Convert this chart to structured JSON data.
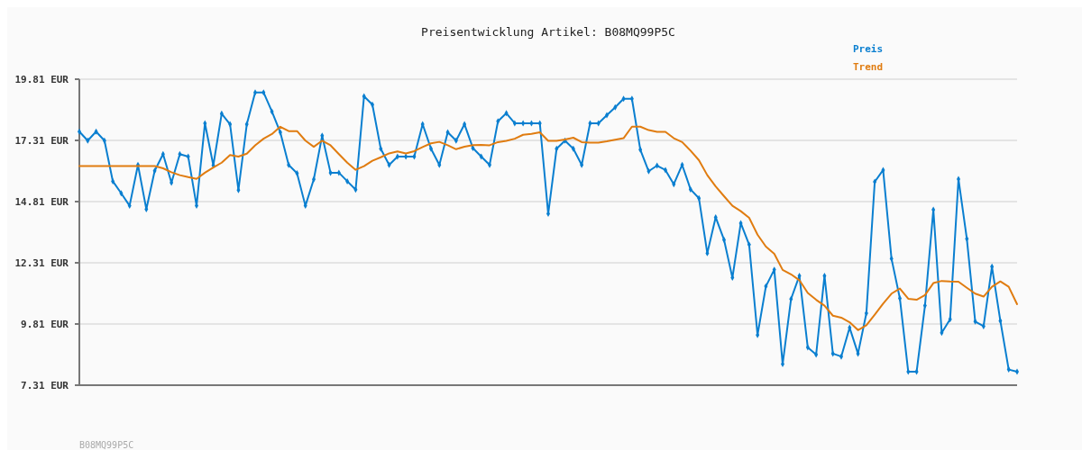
{
  "chart_data": {
    "type": "line",
    "title": "Preisentwicklung Artikel: B08MQ99P5C",
    "categories": [
      null,
      null,
      null,
      null,
      null,
      null,
      null,
      null,
      null,
      null,
      null,
      null,
      null,
      null,
      null,
      null,
      null,
      null,
      null,
      null,
      null,
      null,
      null,
      null,
      null,
      null,
      null,
      null,
      null,
      null,
      null,
      null,
      null,
      null,
      null,
      null,
      null,
      null,
      null,
      null,
      null,
      null,
      null,
      null,
      null,
      null,
      null,
      null,
      null,
      null,
      null,
      null,
      null,
      null,
      null,
      null,
      null,
      null,
      null,
      null,
      null,
      null,
      null,
      null,
      null,
      null,
      null,
      null,
      null,
      null,
      null,
      null,
      null,
      null,
      null,
      null,
      null,
      null,
      null,
      null,
      null,
      null,
      null,
      null,
      null,
      null,
      null,
      null,
      null,
      null,
      null,
      null,
      null,
      null,
      null,
      null,
      null,
      null,
      null,
      null,
      null,
      null,
      null,
      null,
      null,
      null,
      null,
      null,
      null,
      null,
      null,
      null,
      null
    ],
    "series": [
      {
        "name": "Preis",
        "color": "#0a7fd0",
        "marker": "diamond",
        "values": [
          17.67,
          17.3,
          17.67,
          17.3,
          15.64,
          15.15,
          14.64,
          16.31,
          14.5,
          16.07,
          16.75,
          15.58,
          16.75,
          16.65,
          14.64,
          18.01,
          16.29,
          18.4,
          17.97,
          15.28,
          17.97,
          19.27,
          19.27,
          18.49,
          17.64,
          16.31,
          15.97,
          14.64,
          15.72,
          17.5,
          15.99,
          15.99,
          15.64,
          15.3,
          19.11,
          18.77,
          16.97,
          16.31,
          16.65,
          16.65,
          16.65,
          17.97,
          16.97,
          16.31,
          17.64,
          17.3,
          17.97,
          17.0,
          16.65,
          16.31,
          18.09,
          18.42,
          18.01,
          18.01,
          18.01,
          18.01,
          14.31,
          16.97,
          17.3,
          16.97,
          16.31,
          18.01,
          18.01,
          18.34,
          18.66,
          19.01,
          19.01,
          16.93,
          16.05,
          16.28,
          16.1,
          15.52,
          16.31,
          15.31,
          14.95,
          12.7,
          14.17,
          13.25,
          11.7,
          13.93,
          13.05,
          9.36,
          11.35,
          12.03,
          8.17,
          10.83,
          11.78,
          8.85,
          8.56,
          11.78,
          8.6,
          8.48,
          9.66,
          8.6,
          10.25,
          15.62,
          16.1,
          12.48,
          10.86,
          7.86,
          7.86,
          10.56,
          14.48,
          9.45,
          10.0,
          15.73,
          13.29,
          9.91,
          9.72,
          12.15,
          9.94,
          7.95,
          7.86
        ]
      },
      {
        "name": "Trend",
        "color": "#e07c10",
        "marker": "none",
        "values": [
          16.26,
          16.26,
          16.26,
          16.26,
          16.26,
          16.26,
          16.26,
          16.26,
          16.26,
          16.26,
          16.17,
          16.01,
          15.89,
          15.81,
          15.74,
          15.99,
          16.2,
          16.4,
          16.71,
          16.65,
          16.77,
          17.11,
          17.38,
          17.57,
          17.87,
          17.69,
          17.69,
          17.3,
          17.05,
          17.3,
          17.11,
          16.75,
          16.4,
          16.11,
          16.26,
          16.48,
          16.62,
          16.78,
          16.86,
          16.78,
          16.87,
          17.04,
          17.19,
          17.25,
          17.11,
          16.95,
          17.05,
          17.12,
          17.13,
          17.11,
          17.24,
          17.29,
          17.38,
          17.54,
          17.58,
          17.64,
          17.29,
          17.29,
          17.35,
          17.42,
          17.24,
          17.22,
          17.22,
          17.27,
          17.34,
          17.4,
          17.87,
          17.87,
          17.73,
          17.66,
          17.66,
          17.4,
          17.24,
          16.89,
          16.5,
          15.89,
          15.43,
          15.03,
          14.64,
          14.42,
          14.15,
          13.46,
          12.97,
          12.68,
          12.02,
          11.84,
          11.6,
          11.08,
          10.8,
          10.56,
          10.15,
          10.07,
          9.88,
          9.56,
          9.76,
          10.19,
          10.64,
          11.05,
          11.26,
          10.84,
          10.8,
          10.99,
          11.48,
          11.57,
          11.55,
          11.54,
          11.29,
          11.05,
          10.93,
          11.33,
          11.55,
          11.33,
          10.62
        ]
      }
    ],
    "ylim": [
      7.31,
      19.81
    ],
    "yticks": [
      {
        "value": 7.31,
        "label": "7.31 EUR"
      },
      {
        "value": 9.81,
        "label": "9.81 EUR"
      },
      {
        "value": 12.31,
        "label": "12.31 EUR"
      },
      {
        "value": 14.81,
        "label": "14.81 EUR"
      },
      {
        "value": 17.31,
        "label": "17.31 EUR"
      },
      {
        "value": 19.81,
        "label": "19.81 EUR"
      }
    ],
    "grid": "y",
    "legend": "top right",
    "line_style": "solid",
    "annotations": [
      "B08MQ99P5C"
    ]
  }
}
